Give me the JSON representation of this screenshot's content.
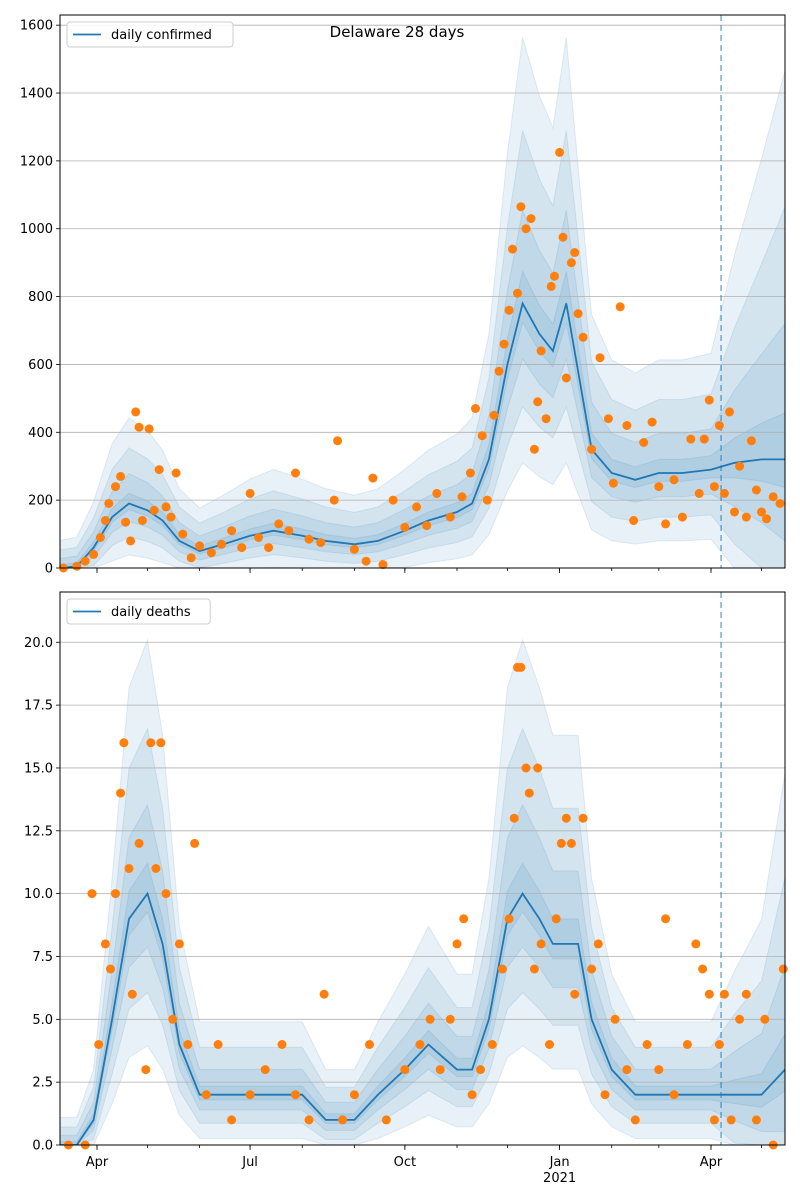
{
  "figure": {
    "title": "Delaware 28 days"
  },
  "colors": {
    "line": "#1f77b4",
    "points": "#ff7f0e",
    "band": "#1f77b4",
    "vline": "#1f77b4",
    "grid": "#b0b0b0"
  },
  "icons": {
    "legend-line": "line-swatch"
  },
  "chart_data": [
    {
      "type": "line",
      "title": "Delaware 28 days",
      "legend": "daily confirmed",
      "legend_position": "top-left",
      "grid": "y",
      "xlim": [
        "2020-03-10",
        "2021-05-15"
      ],
      "ylim": [
        0,
        1630
      ],
      "yticks": [
        0,
        200,
        400,
        600,
        800,
        1000,
        1200,
        1400,
        1600
      ],
      "yticklabels": [
        "0",
        "200",
        "400",
        "600",
        "800",
        "1000",
        "1200",
        "1400",
        "1600"
      ],
      "forecast_start": "2021-04-07",
      "series_x": [
        "2020-03-10",
        "2020-03-20",
        "2020-03-30",
        "2020-04-10",
        "2020-04-20",
        "2020-05-01",
        "2020-05-10",
        "2020-05-20",
        "2020-06-01",
        "2020-06-15",
        "2020-07-01",
        "2020-07-15",
        "2020-08-01",
        "2020-08-15",
        "2020-09-01",
        "2020-09-15",
        "2020-10-01",
        "2020-10-15",
        "2020-11-01",
        "2020-11-10",
        "2020-11-20",
        "2020-12-01",
        "2020-12-10",
        "2020-12-20",
        "2020-12-28",
        "2021-01-05",
        "2021-01-12",
        "2021-01-20",
        "2021-02-01",
        "2021-02-15",
        "2021-03-01",
        "2021-03-15",
        "2021-04-01",
        "2021-04-15",
        "2021-05-01",
        "2021-05-15"
      ],
      "series_y": [
        0,
        5,
        60,
        150,
        190,
        170,
        140,
        80,
        50,
        70,
        95,
        110,
        95,
        80,
        70,
        80,
        110,
        140,
        165,
        190,
        320,
        600,
        780,
        690,
        640,
        780,
        580,
        350,
        280,
        260,
        280,
        280,
        290,
        310,
        320,
        320
      ],
      "points": [
        [
          "2020-03-12",
          0
        ],
        [
          "2020-03-20",
          5
        ],
        [
          "2020-03-25",
          20
        ],
        [
          "2020-03-30",
          40
        ],
        [
          "2020-04-03",
          90
        ],
        [
          "2020-04-06",
          140
        ],
        [
          "2020-04-08",
          190
        ],
        [
          "2020-04-12",
          240
        ],
        [
          "2020-04-15",
          270
        ],
        [
          "2020-04-18",
          135
        ],
        [
          "2020-04-21",
          80
        ],
        [
          "2020-04-24",
          460
        ],
        [
          "2020-04-26",
          415
        ],
        [
          "2020-04-28",
          140
        ],
        [
          "2020-05-02",
          410
        ],
        [
          "2020-05-05",
          170
        ],
        [
          "2020-05-08",
          290
        ],
        [
          "2020-05-12",
          180
        ],
        [
          "2020-05-15",
          150
        ],
        [
          "2020-05-18",
          280
        ],
        [
          "2020-05-22",
          100
        ],
        [
          "2020-05-27",
          30
        ],
        [
          "2020-06-01",
          65
        ],
        [
          "2020-06-08",
          45
        ],
        [
          "2020-06-14",
          70
        ],
        [
          "2020-06-20",
          110
        ],
        [
          "2020-06-26",
          60
        ],
        [
          "2020-07-01",
          220
        ],
        [
          "2020-07-06",
          90
        ],
        [
          "2020-07-12",
          60
        ],
        [
          "2020-07-18",
          130
        ],
        [
          "2020-07-24",
          110
        ],
        [
          "2020-07-28",
          280
        ],
        [
          "2020-08-05",
          85
        ],
        [
          "2020-08-12",
          75
        ],
        [
          "2020-08-20",
          200
        ],
        [
          "2020-08-22",
          375
        ],
        [
          "2020-09-01",
          55
        ],
        [
          "2020-09-08",
          20
        ],
        [
          "2020-09-12",
          265
        ],
        [
          "2020-09-18",
          10
        ],
        [
          "2020-09-24",
          200
        ],
        [
          "2020-10-01",
          120
        ],
        [
          "2020-10-08",
          180
        ],
        [
          "2020-10-14",
          125
        ],
        [
          "2020-10-20",
          220
        ],
        [
          "2020-10-28",
          150
        ],
        [
          "2020-11-04",
          210
        ],
        [
          "2020-11-09",
          280
        ],
        [
          "2020-11-12",
          470
        ],
        [
          "2020-11-16",
          390
        ],
        [
          "2020-11-19",
          200
        ],
        [
          "2020-11-23",
          450
        ],
        [
          "2020-11-26",
          580
        ],
        [
          "2020-11-29",
          660
        ],
        [
          "2020-12-02",
          760
        ],
        [
          "2020-12-04",
          940
        ],
        [
          "2020-12-07",
          810
        ],
        [
          "2020-12-09",
          1065
        ],
        [
          "2020-12-12",
          1000
        ],
        [
          "2020-12-15",
          1030
        ],
        [
          "2020-12-17",
          350
        ],
        [
          "2020-12-19",
          490
        ],
        [
          "2020-12-21",
          640
        ],
        [
          "2020-12-24",
          440
        ],
        [
          "2020-12-27",
          830
        ],
        [
          "2020-12-29",
          860
        ],
        [
          "2021-01-01",
          1225
        ],
        [
          "2021-01-03",
          975
        ],
        [
          "2021-01-05",
          560
        ],
        [
          "2021-01-08",
          900
        ],
        [
          "2021-01-10",
          930
        ],
        [
          "2021-01-12",
          750
        ],
        [
          "2021-01-15",
          680
        ],
        [
          "2021-01-20",
          350
        ],
        [
          "2021-01-25",
          620
        ],
        [
          "2021-01-30",
          440
        ],
        [
          "2021-02-02",
          250
        ],
        [
          "2021-02-06",
          770
        ],
        [
          "2021-02-10",
          420
        ],
        [
          "2021-02-14",
          140
        ],
        [
          "2021-02-20",
          370
        ],
        [
          "2021-02-25",
          430
        ],
        [
          "2021-03-01",
          240
        ],
        [
          "2021-03-05",
          130
        ],
        [
          "2021-03-10",
          260
        ],
        [
          "2021-03-15",
          150
        ],
        [
          "2021-03-20",
          380
        ],
        [
          "2021-03-25",
          220
        ],
        [
          "2021-03-28",
          380
        ],
        [
          "2021-03-31",
          495
        ],
        [
          "2021-04-03",
          240
        ],
        [
          "2021-04-06",
          420
        ],
        [
          "2021-04-09",
          220
        ],
        [
          "2021-04-12",
          460
        ],
        [
          "2021-04-15",
          165
        ],
        [
          "2021-04-18",
          300
        ],
        [
          "2021-04-22",
          150
        ],
        [
          "2021-04-25",
          375
        ],
        [
          "2021-04-28",
          230
        ],
        [
          "2021-05-01",
          165
        ],
        [
          "2021-05-04",
          145
        ],
        [
          "2021-05-08",
          210
        ],
        [
          "2021-05-12",
          190
        ]
      ]
    },
    {
      "type": "line",
      "legend": "daily deaths",
      "legend_position": "top-left",
      "grid": "y",
      "xlim": [
        "2020-03-10",
        "2021-05-15"
      ],
      "ylim": [
        0,
        22
      ],
      "yticks": [
        0,
        2.5,
        5,
        7.5,
        10,
        12.5,
        15,
        17.5,
        20
      ],
      "yticklabels": [
        "0.0",
        "2.5",
        "5.0",
        "7.5",
        "10.0",
        "12.5",
        "15.0",
        "17.5",
        "20.0"
      ],
      "xticks": [
        "2020-04-01",
        "2020-07-01",
        "2020-10-01",
        "2021-01-01",
        "2021-04-01"
      ],
      "xticklabels": [
        "Apr",
        "Jul",
        "Oct",
        "Jan",
        "Apr"
      ],
      "xtick_sublabel": {
        "at": "2021-01-01",
        "text": "2021"
      },
      "forecast_start": "2021-04-07",
      "series_x": [
        "2020-03-10",
        "2020-03-20",
        "2020-03-30",
        "2020-04-10",
        "2020-04-20",
        "2020-05-01",
        "2020-05-10",
        "2020-05-20",
        "2020-06-01",
        "2020-06-15",
        "2020-07-01",
        "2020-07-15",
        "2020-08-01",
        "2020-08-15",
        "2020-09-01",
        "2020-09-15",
        "2020-10-01",
        "2020-10-15",
        "2020-11-01",
        "2020-11-10",
        "2020-11-20",
        "2020-12-01",
        "2020-12-10",
        "2020-12-20",
        "2020-12-28",
        "2021-01-05",
        "2021-01-12",
        "2021-01-20",
        "2021-02-01",
        "2021-02-15",
        "2021-03-01",
        "2021-03-15",
        "2021-04-01",
        "2021-04-15",
        "2021-05-01",
        "2021-05-15"
      ],
      "series_y": [
        0,
        0,
        1,
        5,
        9,
        10,
        8,
        4,
        2,
        2,
        2,
        2,
        2,
        1,
        1,
        2,
        3,
        4,
        3,
        3,
        5,
        9,
        10,
        9,
        8,
        8,
        8,
        5,
        3,
        2,
        2,
        2,
        2,
        2,
        2,
        3
      ],
      "points": [
        [
          "2020-03-15",
          0
        ],
        [
          "2020-03-25",
          0
        ],
        [
          "2020-03-29",
          10
        ],
        [
          "2020-04-02",
          4
        ],
        [
          "2020-04-06",
          8
        ],
        [
          "2020-04-09",
          7
        ],
        [
          "2020-04-12",
          10
        ],
        [
          "2020-04-15",
          14
        ],
        [
          "2020-04-17",
          16
        ],
        [
          "2020-04-20",
          11
        ],
        [
          "2020-04-22",
          6
        ],
        [
          "2020-04-26",
          12
        ],
        [
          "2020-04-30",
          3
        ],
        [
          "2020-05-03",
          16
        ],
        [
          "2020-05-06",
          11
        ],
        [
          "2020-05-09",
          16
        ],
        [
          "2020-05-12",
          10
        ],
        [
          "2020-05-16",
          5
        ],
        [
          "2020-05-20",
          8
        ],
        [
          "2020-05-25",
          4
        ],
        [
          "2020-05-29",
          12
        ],
        [
          "2020-06-05",
          2
        ],
        [
          "2020-06-12",
          4
        ],
        [
          "2020-06-20",
          1
        ],
        [
          "2020-07-01",
          2
        ],
        [
          "2020-07-10",
          3
        ],
        [
          "2020-07-20",
          4
        ],
        [
          "2020-07-28",
          2
        ],
        [
          "2020-08-05",
          1
        ],
        [
          "2020-08-14",
          6
        ],
        [
          "2020-08-25",
          1
        ],
        [
          "2020-09-01",
          2
        ],
        [
          "2020-09-10",
          4
        ],
        [
          "2020-09-20",
          1
        ],
        [
          "2020-10-01",
          3
        ],
        [
          "2020-10-10",
          4
        ],
        [
          "2020-10-16",
          5
        ],
        [
          "2020-10-22",
          3
        ],
        [
          "2020-10-28",
          5
        ],
        [
          "2020-11-01",
          8
        ],
        [
          "2020-11-05",
          9
        ],
        [
          "2020-11-10",
          2
        ],
        [
          "2020-11-15",
          3
        ],
        [
          "2020-11-22",
          4
        ],
        [
          "2020-11-28",
          7
        ],
        [
          "2020-12-02",
          9
        ],
        [
          "2020-12-05",
          13
        ],
        [
          "2020-12-07",
          19
        ],
        [
          "2020-12-09",
          19
        ],
        [
          "2020-12-12",
          15
        ],
        [
          "2020-12-14",
          14
        ],
        [
          "2020-12-17",
          7
        ],
        [
          "2020-12-19",
          15
        ],
        [
          "2020-12-21",
          8
        ],
        [
          "2020-12-26",
          4
        ],
        [
          "2020-12-30",
          9
        ],
        [
          "2021-01-02",
          12
        ],
        [
          "2021-01-05",
          13
        ],
        [
          "2021-01-08",
          12
        ],
        [
          "2021-01-10",
          6
        ],
        [
          "2021-01-15",
          13
        ],
        [
          "2021-01-20",
          7
        ],
        [
          "2021-01-24",
          8
        ],
        [
          "2021-01-28",
          2
        ],
        [
          "2021-02-03",
          5
        ],
        [
          "2021-02-10",
          3
        ],
        [
          "2021-02-15",
          1
        ],
        [
          "2021-02-22",
          4
        ],
        [
          "2021-03-01",
          3
        ],
        [
          "2021-03-05",
          9
        ],
        [
          "2021-03-10",
          2
        ],
        [
          "2021-03-18",
          4
        ],
        [
          "2021-03-23",
          8
        ],
        [
          "2021-03-27",
          7
        ],
        [
          "2021-03-31",
          6
        ],
        [
          "2021-04-03",
          1
        ],
        [
          "2021-04-06",
          4
        ],
        [
          "2021-04-09",
          6
        ],
        [
          "2021-04-13",
          1
        ],
        [
          "2021-04-18",
          5
        ],
        [
          "2021-04-22",
          6
        ],
        [
          "2021-04-28",
          1
        ],
        [
          "2021-05-03",
          5
        ],
        [
          "2021-05-08",
          0
        ],
        [
          "2021-05-14",
          7
        ]
      ]
    }
  ]
}
